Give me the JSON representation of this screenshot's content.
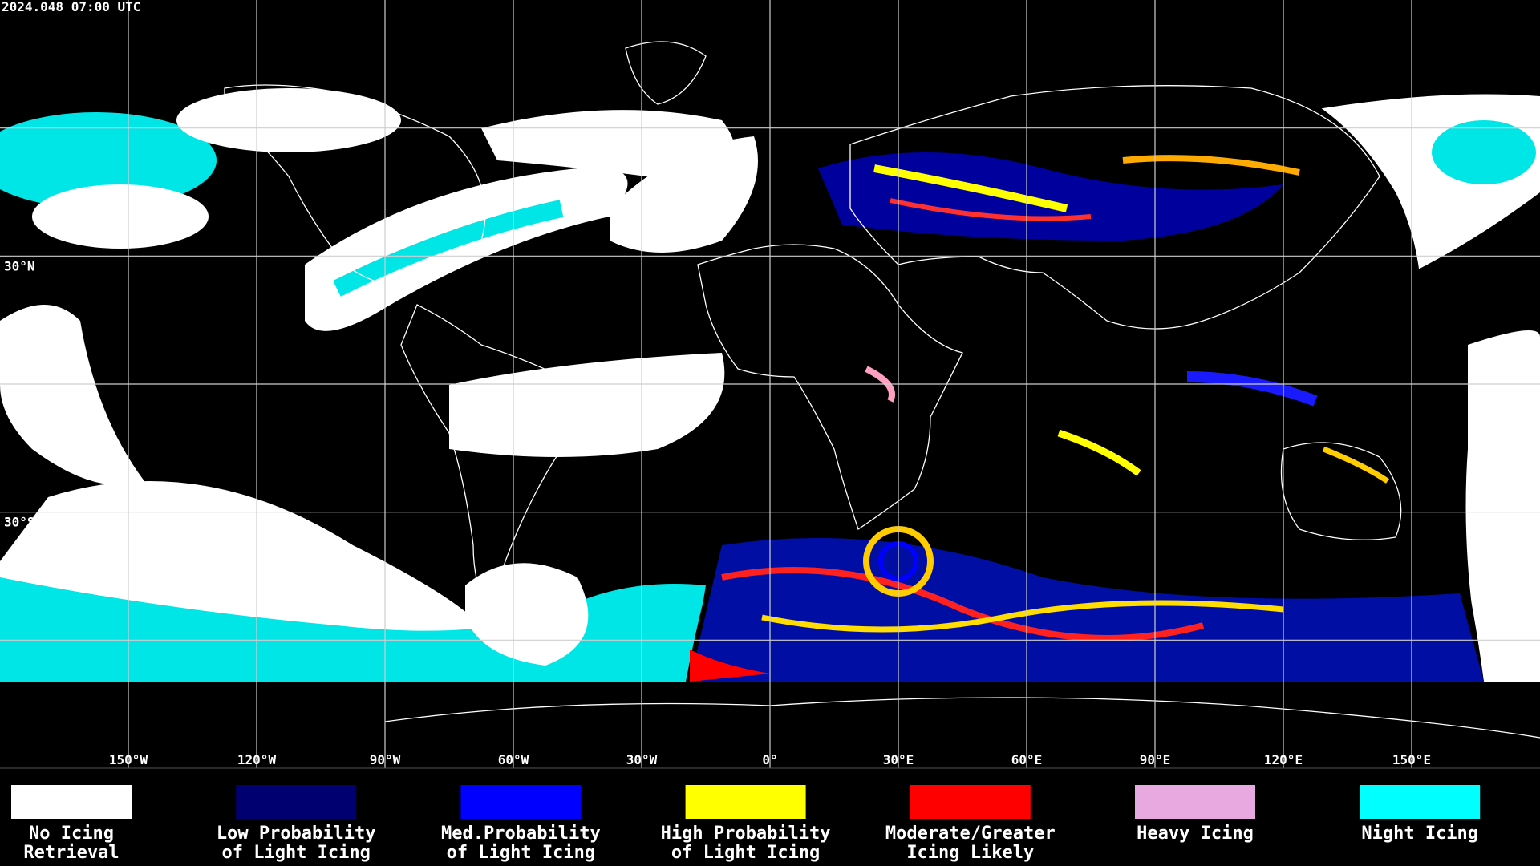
{
  "header": {
    "timestamp": "2024.048 07:00 UTC"
  },
  "map": {
    "longitude_labels": [
      "150°W",
      "120°W",
      "90°W",
      "60°W",
      "30°W",
      "0°",
      "30°E",
      "60°E",
      "90°E",
      "120°E",
      "150°E"
    ],
    "latitude_labels": [
      "30°N",
      "30°S"
    ]
  },
  "legend": {
    "items": [
      {
        "lines": [
          "No Icing",
          "Retrieval"
        ],
        "color": "#ffffff"
      },
      {
        "lines": [
          "Low Probability",
          "of Light Icing"
        ],
        "color": "#000070"
      },
      {
        "lines": [
          "Med.Probability",
          "of Light Icing"
        ],
        "color": "#0000ff"
      },
      {
        "lines": [
          "High Probability",
          "of Light Icing"
        ],
        "color": "#ffff00"
      },
      {
        "lines": [
          "Moderate/Greater",
          "Icing Likely"
        ],
        "color": "#ff0000"
      },
      {
        "lines": [
          "Heavy Icing"
        ],
        "color": "#e8a8e0"
      },
      {
        "lines": [
          "Night Icing"
        ],
        "color": "#00ffff"
      }
    ]
  }
}
